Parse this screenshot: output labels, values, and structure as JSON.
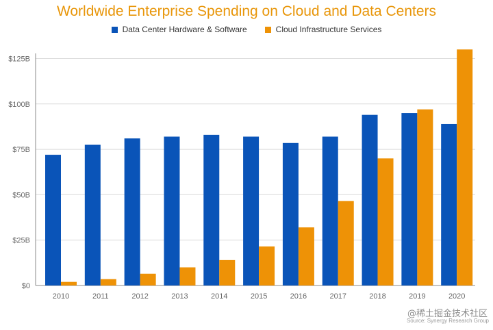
{
  "chart_data": {
    "type": "bar",
    "title": "Worldwide Enterprise Spending on Cloud and Data Centers",
    "categories": [
      "2010",
      "2011",
      "2012",
      "2013",
      "2014",
      "2015",
      "2016",
      "2017",
      "2018",
      "2019",
      "2020"
    ],
    "series": [
      {
        "name": "Data Center Hardware & Software",
        "color": "#0a54b8",
        "values": [
          72,
          77.5,
          81,
          82,
          83,
          82,
          78.5,
          82,
          94,
          95,
          89
        ]
      },
      {
        "name": "Cloud Infrastructure Services",
        "color": "#ee9206",
        "values": [
          2,
          3.5,
          6.5,
          10,
          14,
          21.5,
          32,
          46.5,
          70,
          97,
          130
        ]
      }
    ],
    "y_ticks": [
      "$0",
      "$25B",
      "$50B",
      "$75B",
      "$100B",
      "$125B"
    ],
    "ylim": [
      0,
      130
    ],
    "grid": true,
    "legend_position": "top-center",
    "source": "Source: Synergy Research Group"
  },
  "watermark": "@稀土掘金技术社区"
}
